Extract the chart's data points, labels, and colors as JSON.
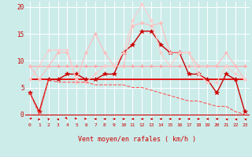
{
  "xlabel": "Vent moyen/en rafales ( km/h )",
  "x": [
    0,
    1,
    2,
    3,
    4,
    5,
    6,
    7,
    8,
    9,
    10,
    11,
    12,
    13,
    14,
    15,
    16,
    17,
    18,
    19,
    20,
    21,
    22,
    23
  ],
  "ylim": [
    -1.5,
    21
  ],
  "xlim": [
    -0.5,
    23.5
  ],
  "background_color": "#ccecea",
  "grid_color": "#ffffff",
  "lines": [
    {
      "y": [
        9.0,
        9.0,
        9.0,
        9.0,
        9.0,
        9.0,
        9.0,
        9.0,
        9.0,
        9.0,
        9.0,
        9.0,
        9.0,
        9.0,
        9.0,
        9.0,
        9.0,
        9.0,
        9.0,
        9.0,
        9.0,
        9.0,
        9.0,
        9.0
      ],
      "color": "#ffaaaa",
      "linewidth": 0.9,
      "marker": "D",
      "markersize": 2.0,
      "linestyle": "-"
    },
    {
      "y": [
        6.5,
        6.5,
        6.5,
        6.5,
        6.5,
        6.5,
        6.5,
        6.5,
        6.5,
        6.5,
        6.5,
        6.5,
        6.5,
        6.5,
        6.5,
        6.5,
        6.5,
        6.5,
        6.5,
        6.5,
        6.5,
        6.5,
        6.5,
        6.5
      ],
      "color": "#ff8888",
      "linewidth": 1.2,
      "marker": null,
      "markersize": 0,
      "linestyle": "-"
    },
    {
      "y": [
        6.5,
        6.5,
        6.5,
        6.5,
        6.5,
        6.5,
        6.5,
        6.5,
        6.5,
        6.5,
        6.5,
        6.5,
        6.5,
        6.5,
        6.5,
        6.5,
        6.5,
        6.5,
        6.5,
        6.5,
        6.5,
        6.5,
        6.5,
        6.5
      ],
      "color": "#dd0000",
      "linewidth": 1.2,
      "marker": null,
      "markersize": 0,
      "linestyle": "-"
    },
    {
      "y": [
        4.0,
        0.5,
        6.5,
        6.5,
        7.5,
        7.5,
        6.5,
        6.5,
        7.5,
        7.5,
        11.5,
        13.0,
        15.5,
        15.5,
        13.0,
        11.5,
        11.5,
        7.5,
        7.5,
        6.5,
        4.0,
        7.5,
        6.5,
        0.5
      ],
      "color": "#cc0000",
      "linewidth": 1.0,
      "marker": "*",
      "markersize": 4,
      "linestyle": "-"
    },
    {
      "y": [
        9.0,
        6.5,
        9.0,
        11.5,
        11.5,
        6.5,
        11.5,
        15.0,
        11.5,
        9.0,
        9.0,
        16.5,
        17.0,
        16.5,
        17.0,
        11.5,
        11.5,
        11.5,
        9.0,
        9.0,
        9.0,
        11.5,
        9.0,
        6.5
      ],
      "color": "#ffbbbb",
      "linewidth": 0.8,
      "marker": "D",
      "markersize": 2.0,
      "linestyle": "-"
    },
    {
      "y": [
        6.5,
        9.0,
        12.0,
        12.0,
        12.0,
        6.0,
        6.0,
        7.5,
        9.0,
        9.0,
        11.5,
        17.5,
        20.5,
        17.5,
        11.5,
        9.0,
        11.5,
        11.5,
        7.5,
        6.0,
        6.0,
        9.0,
        7.5,
        6.5
      ],
      "color": "#ffcccc",
      "linewidth": 0.8,
      "marker": "D",
      "markersize": 2.0,
      "linestyle": "-"
    },
    {
      "y": [
        4.0,
        0.0,
        6.5,
        6.0,
        6.0,
        6.0,
        6.0,
        5.5,
        5.5,
        5.5,
        5.5,
        5.0,
        5.0,
        4.5,
        4.0,
        3.5,
        3.0,
        2.5,
        2.5,
        2.0,
        1.5,
        1.5,
        0.5,
        0.0
      ],
      "color": "#ff5555",
      "linewidth": 0.8,
      "marker": null,
      "markersize": 0,
      "linestyle": "--"
    }
  ],
  "yticks": [
    0,
    5,
    10,
    15,
    20
  ],
  "xticks": [
    0,
    1,
    2,
    3,
    4,
    5,
    6,
    7,
    8,
    9,
    10,
    11,
    12,
    13,
    14,
    15,
    16,
    17,
    18,
    19,
    20,
    21,
    22,
    23
  ],
  "wind_directions": [
    225,
    200,
    180,
    160,
    150,
    135,
    120,
    270,
    270,
    270,
    270,
    270,
    270,
    270,
    270,
    270,
    270,
    270,
    270,
    270,
    270,
    315,
    315,
    315
  ]
}
